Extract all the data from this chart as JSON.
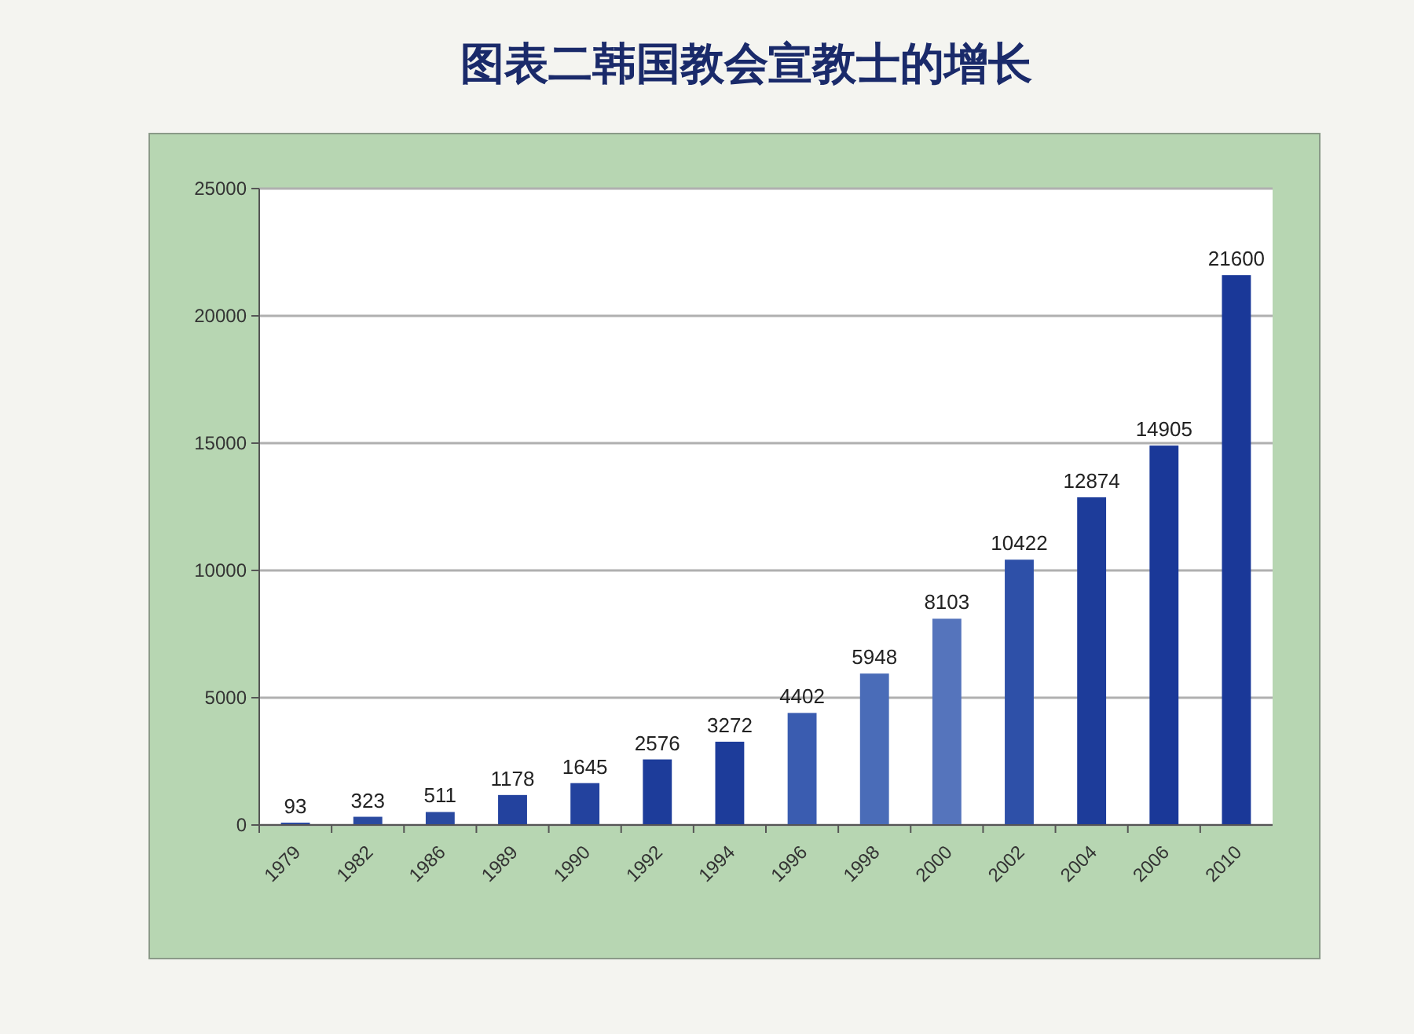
{
  "chart_data": {
    "type": "bar",
    "title": "图表二韩国教会宣教士的增长",
    "categories": [
      "1979",
      "1982",
      "1986",
      "1989",
      "1990",
      "1992",
      "1994",
      "1996",
      "1998",
      "2000",
      "2002",
      "2004",
      "2006",
      "2010"
    ],
    "values": [
      93,
      323,
      511,
      1178,
      1645,
      2576,
      3272,
      4402,
      5948,
      8103,
      10422,
      12874,
      14905,
      21600
    ],
    "colors": [
      "#2a4aa0",
      "#2a4aa0",
      "#2a4aa0",
      "#23429e",
      "#23429e",
      "#1d3c9a",
      "#1d3c9a",
      "#3a5cb0",
      "#4a6cb8",
      "#5574bc",
      "#2e50a8",
      "#1d3c9a",
      "#1a3898",
      "#1a3898"
    ],
    "ylim": [
      0,
      25000
    ],
    "yticks": [
      0,
      5000,
      10000,
      15000,
      20000,
      25000
    ],
    "grid": "y",
    "data_labels": true
  }
}
